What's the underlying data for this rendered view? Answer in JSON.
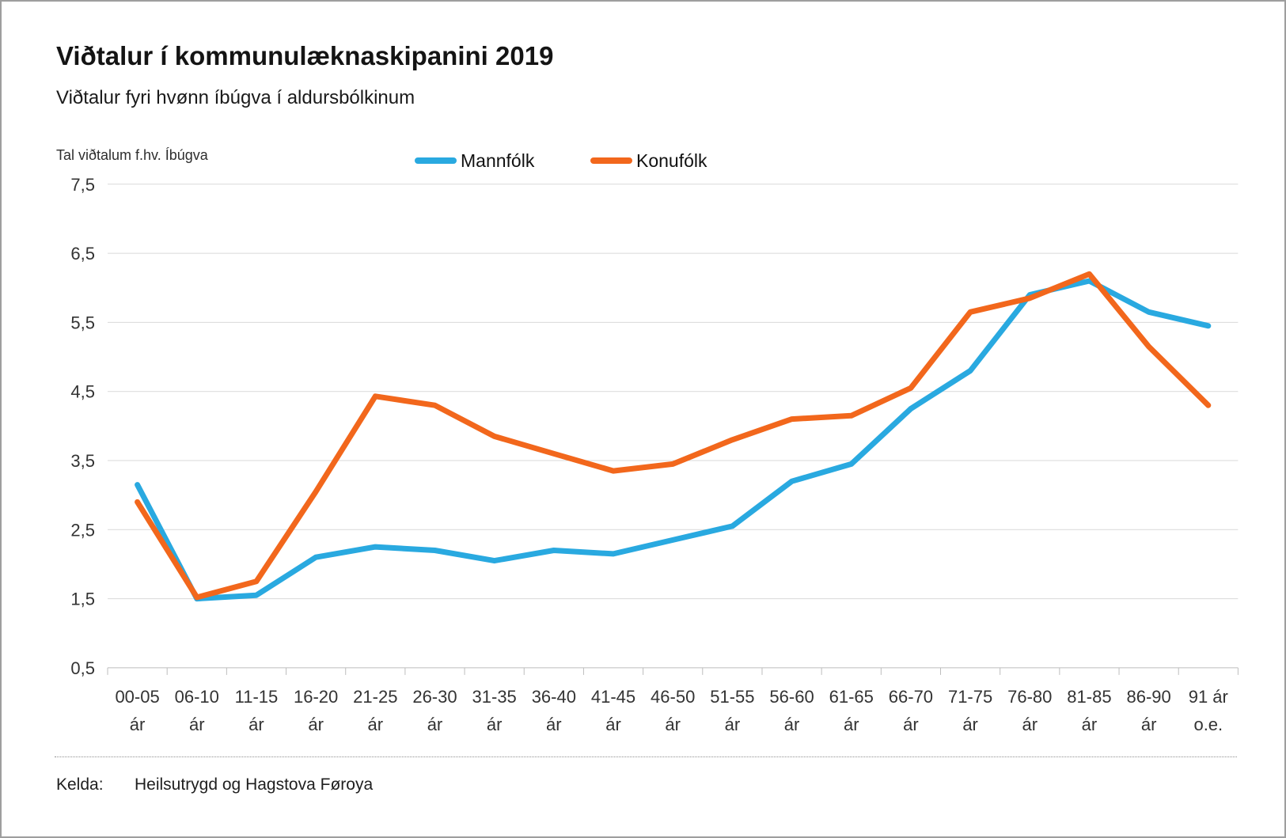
{
  "title": "Viðtalur í kommunulæknaskipanini 2019",
  "subtitle": "Viðtalur fyri hvønn íbúgva í aldursbólkinum",
  "y_axis_title": "Tal viðtalum f.hv. Íbúgva",
  "legend": [
    {
      "name": "Mannfólk",
      "color": "#29a9e0"
    },
    {
      "name": "Konufólk",
      "color": "#f2671c"
    }
  ],
  "footer": {
    "source_label": "Kelda:",
    "source_value": "Heilsutrygd og Hagstova Føroya"
  },
  "chart_data": {
    "type": "line",
    "title": "Viðtalur í kommunulæknaskipanini 2019",
    "subtitle": "Viðtalur fyri hvønn íbúgva í aldursbólkinum",
    "ylabel": "Tal viðtalum f.hv. Íbúgva",
    "ylim": [
      0.5,
      7.5
    ],
    "ytick_values": [
      7.5,
      6.5,
      5.5,
      4.5,
      3.5,
      2.5,
      1.5,
      0.5
    ],
    "ytick_labels": [
      "7,5",
      "6,5",
      "5,5",
      "4,5",
      "3,5",
      "2,5",
      "1,5",
      "0,5"
    ],
    "grid": "horizontal",
    "legend_position": "top",
    "grid_color": "#d9d9d9",
    "axis_color": "#bdbdbd",
    "tick_text_color": "#333333",
    "categories": [
      [
        "00-05",
        "ár"
      ],
      [
        "06-10",
        "ár"
      ],
      [
        "11-15",
        "ár"
      ],
      [
        "16-20",
        "ár"
      ],
      [
        "21-25",
        "ár"
      ],
      [
        "26-30",
        "ár"
      ],
      [
        "31-35",
        "ár"
      ],
      [
        "36-40",
        "ár"
      ],
      [
        "41-45",
        "ár"
      ],
      [
        "46-50",
        "ár"
      ],
      [
        "51-55",
        "ár"
      ],
      [
        "56-60",
        "ár"
      ],
      [
        "61-65",
        "ár"
      ],
      [
        "66-70",
        "ár"
      ],
      [
        "71-75",
        "ár"
      ],
      [
        "76-80",
        "ár"
      ],
      [
        "81-85",
        "ár"
      ],
      [
        "86-90",
        "ár"
      ],
      [
        "91 ár",
        "o.e."
      ]
    ],
    "series": [
      {
        "name": "Mannfólk",
        "color": "#29a9e0",
        "values": [
          3.15,
          1.5,
          1.55,
          2.1,
          2.25,
          2.2,
          2.05,
          2.2,
          2.15,
          2.35,
          2.55,
          3.2,
          3.45,
          4.25,
          4.8,
          5.9,
          6.1,
          5.65,
          5.45
        ]
      },
      {
        "name": "Konufólk",
        "color": "#f2671c",
        "values": [
          2.9,
          1.52,
          1.75,
          3.05,
          4.43,
          4.3,
          3.85,
          3.6,
          3.35,
          3.45,
          3.8,
          4.1,
          4.15,
          4.55,
          5.65,
          5.85,
          6.2,
          5.15,
          4.3
        ]
      }
    ]
  }
}
